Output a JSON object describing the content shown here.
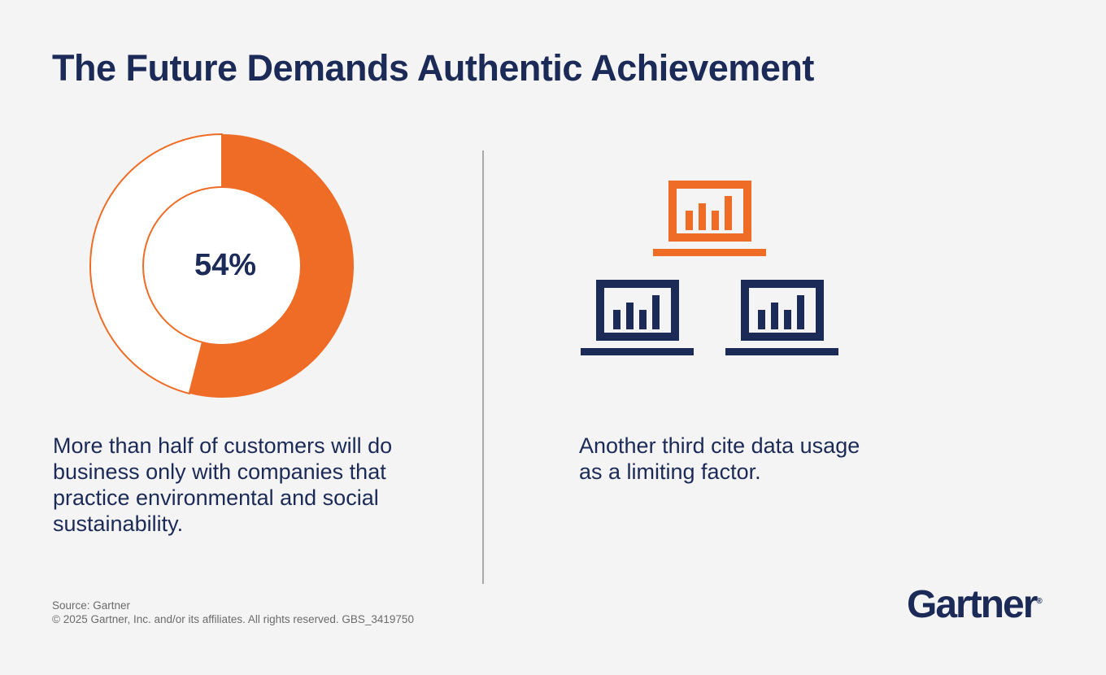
{
  "title": "The Future Demands Authentic Achievement",
  "chart_data": {
    "type": "pie",
    "variant": "donut",
    "values": [
      54,
      46
    ],
    "center_label": "54%",
    "colors": [
      "#ee6c26",
      "#ffffff"
    ]
  },
  "left_caption": "More than half of customers will do business only with companies that practice environmental and social sustainability.",
  "right_icon": "three-laptops-with-bar-charts-icon",
  "right_caption": "Another third cite data usage as a limiting factor.",
  "footer": {
    "source": "Source: Gartner",
    "copyright": "© 2025 Gartner, Inc. and/or its affiliates. All rights reserved. GBS_3419750"
  },
  "logo": "Gartner",
  "colors": {
    "navy": "#1b2a57",
    "orange": "#ee6c26",
    "background": "#f4f4f4"
  }
}
